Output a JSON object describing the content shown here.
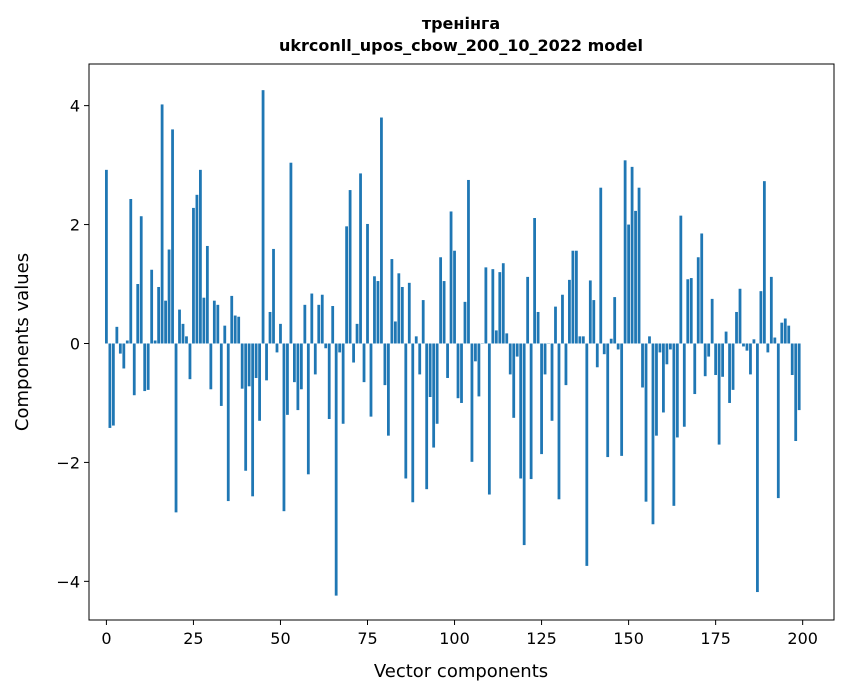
{
  "chart_data": {
    "type": "bar",
    "title_line1": "тренінга",
    "title_line2": "ukrconll_upos_cbow_200_10_2022 model",
    "xlabel": "Vector components",
    "ylabel": "Components values",
    "xlim": [
      -5,
      209
    ],
    "ylim": [
      -4.65,
      4.7
    ],
    "xticks": [
      0,
      25,
      50,
      75,
      100,
      125,
      150,
      175,
      200
    ],
    "xtick_labels": [
      "0",
      "25",
      "50",
      "75",
      "100",
      "125",
      "150",
      "175",
      "200"
    ],
    "yticks": [
      -4,
      -2,
      0,
      2,
      4
    ],
    "ytick_labels": [
      "−4",
      "−2",
      "0",
      "2",
      "4"
    ],
    "bar_color": "#1f77b4",
    "grid": false,
    "x": [
      0,
      1,
      2,
      3,
      4,
      5,
      6,
      7,
      8,
      9,
      10,
      11,
      12,
      13,
      14,
      15,
      16,
      17,
      18,
      19,
      20,
      21,
      22,
      23,
      24,
      25,
      26,
      27,
      28,
      29,
      30,
      31,
      32,
      33,
      34,
      35,
      36,
      37,
      38,
      39,
      40,
      41,
      42,
      43,
      44,
      45,
      46,
      47,
      48,
      49,
      50,
      51,
      52,
      53,
      54,
      55,
      56,
      57,
      58,
      59,
      60,
      61,
      62,
      63,
      64,
      65,
      66,
      67,
      68,
      69,
      70,
      71,
      72,
      73,
      74,
      75,
      76,
      77,
      78,
      79,
      80,
      81,
      82,
      83,
      84,
      85,
      86,
      87,
      88,
      89,
      90,
      91,
      92,
      93,
      94,
      95,
      96,
      97,
      98,
      99,
      100,
      101,
      102,
      103,
      104,
      105,
      106,
      107,
      108,
      109,
      110,
      111,
      112,
      113,
      114,
      115,
      116,
      117,
      118,
      119,
      120,
      121,
      122,
      123,
      124,
      125,
      126,
      127,
      128,
      129,
      130,
      131,
      132,
      133,
      134,
      135,
      136,
      137,
      138,
      139,
      140,
      141,
      142,
      143,
      144,
      145,
      146,
      147,
      148,
      149,
      150,
      151,
      152,
      153,
      154,
      155,
      156,
      157,
      158,
      159,
      160,
      161,
      162,
      163,
      164,
      165,
      166,
      167,
      168,
      169,
      170,
      171,
      172,
      173,
      174,
      175,
      176,
      177,
      178,
      179,
      180,
      181,
      182,
      183,
      184,
      185,
      186,
      187,
      188,
      189,
      190,
      191,
      192,
      193,
      194,
      195,
      196,
      197,
      198,
      199
    ],
    "values": [
      2.92,
      -1.42,
      -1.38,
      0.28,
      -0.17,
      -0.42,
      0.05,
      2.43,
      -0.87,
      1.0,
      2.14,
      -0.8,
      -0.78,
      1.24,
      0.05,
      0.95,
      4.02,
      0.72,
      1.58,
      3.6,
      -2.84,
      0.57,
      0.33,
      0.12,
      -0.6,
      2.28,
      2.5,
      2.92,
      0.77,
      1.64,
      -0.77,
      0.72,
      0.65,
      -1.05,
      0.3,
      -2.65,
      0.8,
      0.47,
      0.45,
      -0.76,
      -2.14,
      -0.72,
      -2.57,
      -0.58,
      -1.3,
      4.26,
      -0.62,
      0.53,
      1.59,
      -0.15,
      0.33,
      -2.82,
      -1.2,
      3.04,
      -0.65,
      -1.12,
      -0.77,
      0.65,
      -2.2,
      0.84,
      -0.52,
      0.65,
      0.82,
      -0.08,
      -1.27,
      0.63,
      -4.24,
      -0.15,
      -1.35,
      1.97,
      2.58,
      -0.32,
      0.33,
      2.86,
      -0.65,
      2.01,
      -1.23,
      1.13,
      1.05,
      3.8,
      -0.7,
      -1.55,
      1.42,
      0.37,
      1.18,
      0.95,
      -2.27,
      1.02,
      -2.67,
      0.12,
      -0.52,
      0.73,
      -2.45,
      -0.9,
      -1.75,
      -1.35,
      1.45,
      1.05,
      -0.58,
      2.22,
      1.56,
      -0.92,
      -1.0,
      0.7,
      2.75,
      -1.99,
      -0.3,
      -0.89,
      0.0,
      1.28,
      -2.54,
      1.25,
      0.22,
      1.2,
      1.35,
      0.17,
      -0.52,
      -1.25,
      -0.22,
      -2.27,
      -3.39,
      1.12,
      -2.28,
      2.11,
      0.53,
      -1.86,
      -0.52,
      0.0,
      -1.3,
      0.62,
      -2.62,
      0.82,
      -0.7,
      1.07,
      1.56,
      1.56,
      0.12,
      0.12,
      -3.74,
      1.06,
      0.73,
      -0.4,
      2.62,
      -0.18,
      -1.91,
      0.08,
      0.78,
      -0.1,
      -1.89,
      3.08,
      2.0,
      2.97,
      2.23,
      2.62,
      -0.74,
      -2.66,
      0.12,
      -3.04,
      -1.55,
      -0.15,
      -1.16,
      -0.35,
      -0.1,
      -2.73,
      -1.58,
      2.15,
      -1.4,
      1.08,
      1.1,
      -0.85,
      1.45,
      1.85,
      -0.55,
      -0.22,
      0.75,
      -0.53,
      -1.7,
      -0.56,
      0.2,
      -1.0,
      -0.78,
      0.53,
      0.92,
      -0.05,
      -0.12,
      -0.52,
      0.07,
      -4.18,
      0.88,
      2.73,
      -0.15,
      1.12,
      0.1,
      -2.6,
      0.35,
      0.42,
      0.3,
      -0.53,
      -1.64,
      -1.12
    ]
  }
}
